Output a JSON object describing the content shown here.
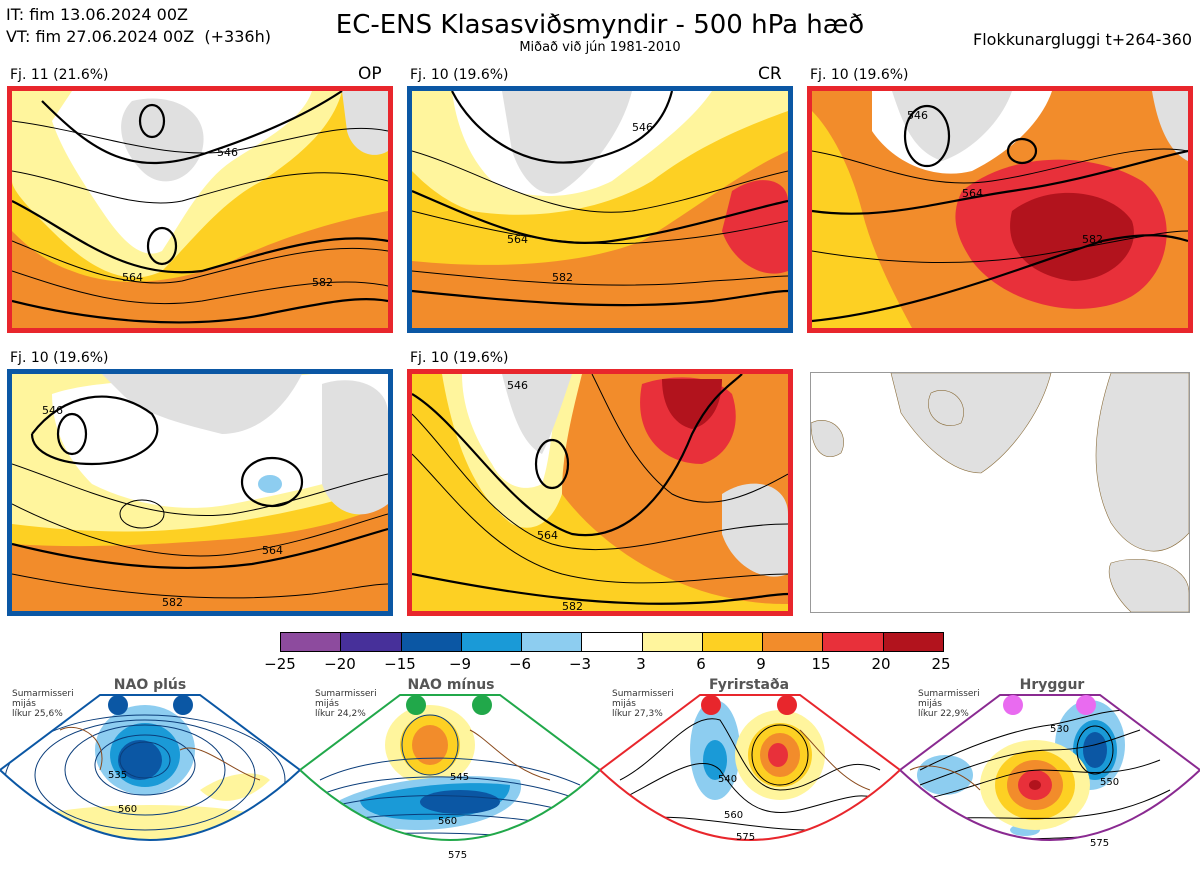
{
  "header": {
    "it_line": "IT: fim 13.06.2024 00Z",
    "vt_line": "VT: fim 27.06.2024 00Z  (+336h)",
    "title": "EC-ENS Klasasviðsmyndir - 500 hPa hæð",
    "subtitle": "Miðað við jún 1981-2010",
    "window": "Flokkunargluggi t+264-360"
  },
  "panels": [
    {
      "label": "Fj. 11 (21.6%)",
      "tag": "OP",
      "border": "#e8262c"
    },
    {
      "label": "Fj. 10 (19.6%)",
      "tag": "CR",
      "border": "#0b57a4"
    },
    {
      "label": "Fj. 10 (19.6%)",
      "tag": "",
      "border": "#e8262c"
    },
    {
      "label": "Fj. 10 (19.6%)",
      "tag": "",
      "border": "#0b57a4"
    },
    {
      "label": "Fj. 10 (19.6%)",
      "tag": "",
      "border": "#e8262c"
    }
  ],
  "contour_labels": [
    "546",
    "564",
    "582"
  ],
  "colorbar": {
    "ticks": [
      "−25",
      "−20",
      "−15",
      "−9",
      "−6",
      "−3",
      "3",
      "6",
      "9",
      "15",
      "20",
      "25"
    ],
    "colors": [
      "#8d4b9e",
      "#47309a",
      "#0b57a4",
      "#1a9ad7",
      "#8dcdf0",
      "#ffffff",
      "#fff59d",
      "#fdd023",
      "#f28c2b",
      "#e8303a",
      "#b2131d"
    ]
  },
  "regimes": [
    {
      "title": "NAO plús",
      "note": "Sumarmisseri\nmijás\nlíkur 25,6%",
      "color": "#0b57a4",
      "labels": [
        "535",
        "560"
      ]
    },
    {
      "title": "NAO mínus",
      "note": "Sumarmisseri\nmijás\nlíkur 24,2%",
      "color": "#21a84a",
      "labels": [
        "545",
        "560",
        "575"
      ]
    },
    {
      "title": "Fyrirstaða",
      "note": "Sumarmisseri\nmijás\nlíkur 27,3%",
      "color": "#e8262c",
      "labels": [
        "540",
        "560",
        "575"
      ]
    },
    {
      "title": "Hryggur",
      "note": "Sumarmisseri\nmijás\nlíkur 22,9%",
      "color": "#8a2a91",
      "labels": [
        "530",
        "550",
        "575"
      ]
    }
  ],
  "legend_dot_color_regime4": "#e96bf0"
}
